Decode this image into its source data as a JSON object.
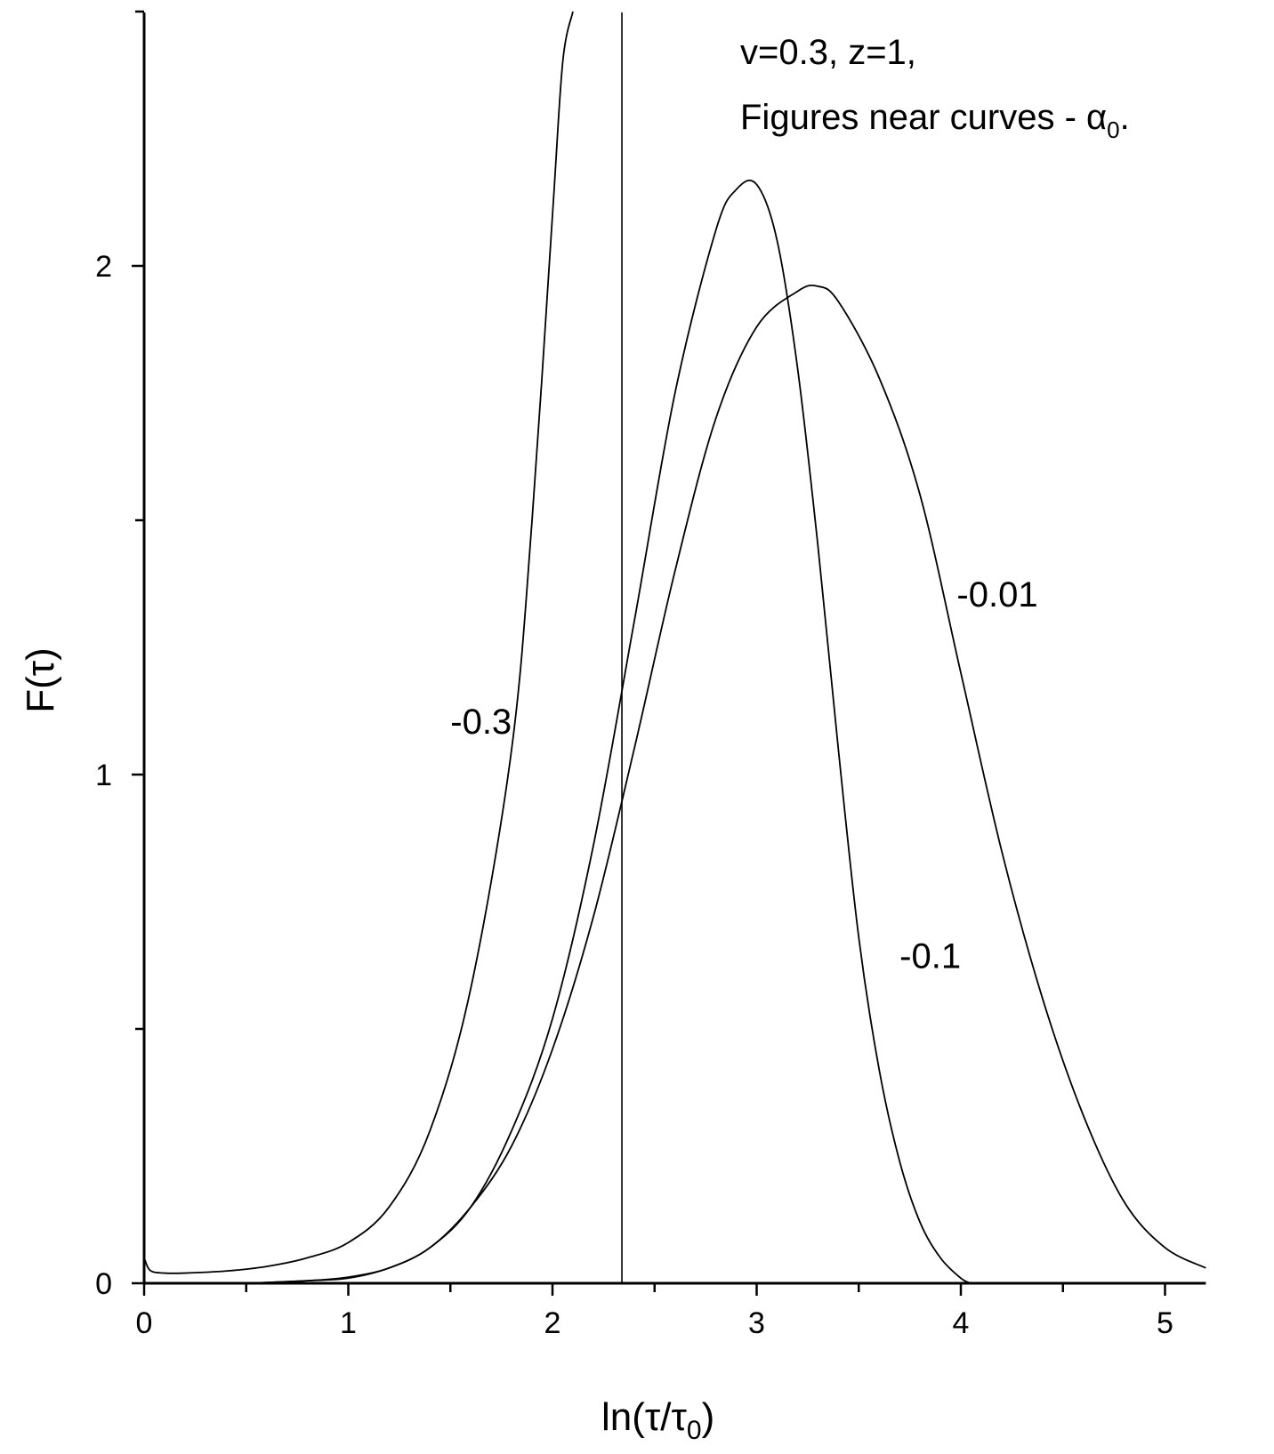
{
  "chart_data": {
    "type": "line",
    "xlabel": {
      "main": "ln(τ/τ",
      "sub": "0",
      "close": ")"
    },
    "ylabel": "F(τ)",
    "xlim": [
      0,
      5.2
    ],
    "ylim": [
      0,
      2.5
    ],
    "x_ticks": [
      "0",
      "1",
      "2",
      "3",
      "4",
      "5"
    ],
    "y_ticks": [
      "0",
      "1",
      "2"
    ],
    "annotation": {
      "line1": "v=0.3, z=1,",
      "line2": "Figures near curves - α",
      "line2_sub": "0",
      "line2_end": "."
    },
    "vertical_line_x": 2.34,
    "series": [
      {
        "name": "-0.3",
        "x": [
          0.0,
          0.03,
          0.1,
          0.2,
          0.4,
          0.6,
          0.8,
          1.0,
          1.2,
          1.4,
          1.6,
          1.8,
          1.9,
          2.0,
          2.05,
          2.1
        ],
        "y": [
          0.05,
          0.025,
          0.02,
          0.02,
          0.024,
          0.033,
          0.05,
          0.08,
          0.15,
          0.3,
          0.58,
          1.05,
          1.5,
          2.1,
          2.4,
          2.5
        ]
      },
      {
        "name": "-0.1",
        "x": [
          0.5,
          0.8,
          1.0,
          1.2,
          1.4,
          1.6,
          1.8,
          2.0,
          2.2,
          2.4,
          2.6,
          2.8,
          2.9,
          3.0,
          3.1,
          3.2,
          3.3,
          3.4,
          3.5,
          3.6,
          3.7,
          3.8,
          3.9,
          4.0,
          4.05
        ],
        "y": [
          0.0,
          0.005,
          0.01,
          0.03,
          0.07,
          0.15,
          0.3,
          0.52,
          0.86,
          1.3,
          1.75,
          2.07,
          2.15,
          2.16,
          2.05,
          1.8,
          1.45,
          1.05,
          0.68,
          0.42,
          0.24,
          0.12,
          0.05,
          0.01,
          0.0
        ]
      },
      {
        "name": "-0.01",
        "x": [
          0.5,
          0.8,
          1.0,
          1.2,
          1.4,
          1.6,
          1.8,
          2.0,
          2.2,
          2.4,
          2.6,
          2.8,
          3.0,
          3.2,
          3.3,
          3.4,
          3.6,
          3.8,
          4.0,
          4.2,
          4.4,
          4.6,
          4.8,
          5.0,
          5.2
        ],
        "y": [
          0.0,
          0.005,
          0.012,
          0.03,
          0.07,
          0.15,
          0.27,
          0.46,
          0.72,
          1.05,
          1.4,
          1.7,
          1.88,
          1.95,
          1.96,
          1.93,
          1.78,
          1.55,
          1.2,
          0.85,
          0.56,
          0.33,
          0.16,
          0.07,
          0.03
        ]
      }
    ],
    "curve_labels": [
      {
        "text": "-0.3",
        "x": 1.5,
        "y": 1.08
      },
      {
        "text": "-0.1",
        "x": 3.7,
        "y": 0.62
      },
      {
        "text": "-0.01",
        "x": 3.98,
        "y": 1.33
      }
    ]
  }
}
